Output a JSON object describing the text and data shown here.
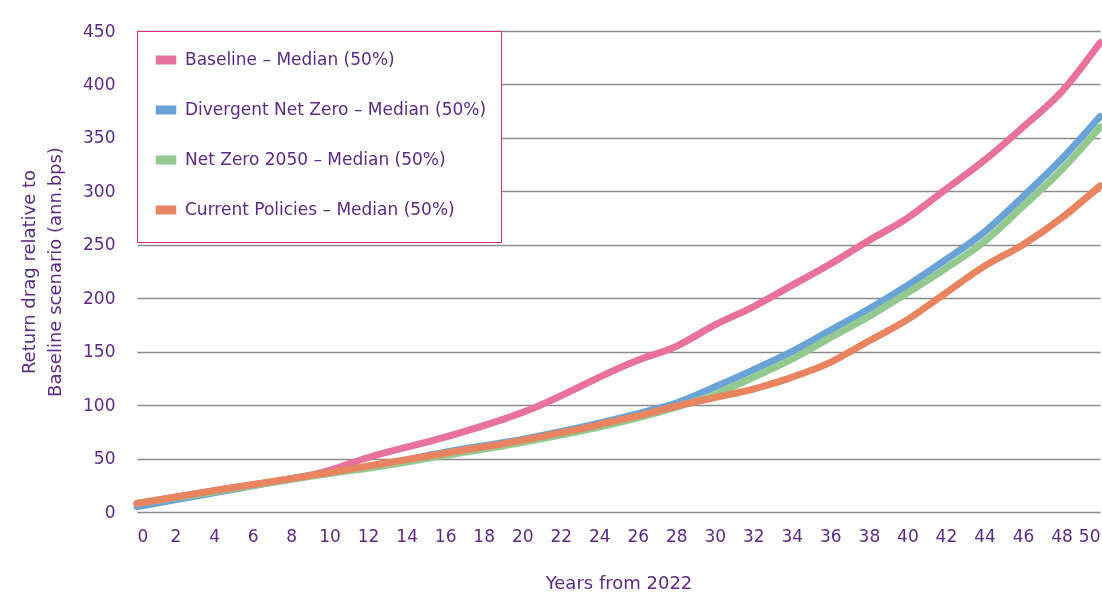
{
  "chart_data": {
    "type": "line",
    "xlabel": "Years from 2022",
    "ylabel": "Return drag relative to\nBaseline scenario (ann.bps)",
    "x": [
      0,
      4,
      10,
      12,
      16,
      20,
      26,
      28,
      30,
      32,
      34,
      36,
      38,
      40,
      42,
      44,
      46,
      48,
      50
    ],
    "series": [
      {
        "name": "Baseline – Median (50%)",
        "color": "#e8719e",
        "values": [
          8,
          20,
          39,
          51,
          70,
          93,
          142,
          155,
          175,
          192,
          212,
          232,
          254,
          275,
          302,
          329,
          360,
          393,
          439
        ]
      },
      {
        "name": "Divergent Net Zero – Median (50%)",
        "color": "#6aa3d6",
        "values": [
          5,
          18,
          37,
          42,
          56,
          68,
          92,
          102,
          117,
          133,
          150,
          170,
          190,
          212,
          236,
          262,
          295,
          330,
          370
        ]
      },
      {
        "name": "Net Zero 2050 – Median (50%)",
        "color": "#93c98e",
        "values": [
          8,
          19,
          36,
          41,
          53,
          65,
          88,
          98,
          110,
          126,
          143,
          163,
          183,
          205,
          228,
          253,
          286,
          320,
          360
        ]
      },
      {
        "name": "Current Policies – Median (50%)",
        "color": "#e8845f",
        "values": [
          8,
          20,
          37,
          43,
          55,
          67,
          90,
          99,
          107,
          115,
          126,
          140,
          160,
          180,
          205,
          230,
          250,
          275,
          305
        ]
      }
    ],
    "xlim": [
      0,
      50
    ],
    "xticks": [
      0,
      2,
      4,
      6,
      8,
      10,
      12,
      14,
      16,
      18,
      20,
      22,
      24,
      26,
      28,
      30,
      32,
      34,
      36,
      38,
      40,
      42,
      44,
      46,
      48,
      50
    ],
    "ylim": [
      0,
      450
    ],
    "yticks": [
      0,
      50,
      100,
      150,
      200,
      250,
      300,
      350,
      400,
      450
    ],
    "grid": "y",
    "legend": "top left",
    "line_style": "solid",
    "marker": "none"
  }
}
